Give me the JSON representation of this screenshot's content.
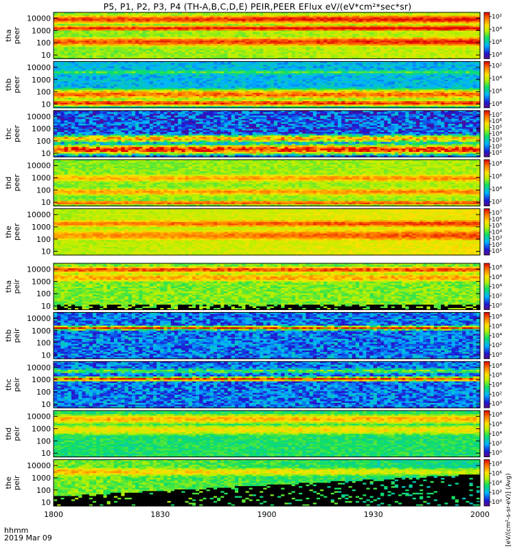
{
  "title": "P5, P1, P2, P3, P4 (TH-A,B,C,D,E) PEIR,PEER EFlux eV/(eV*cm²*sec*sr)",
  "footer": {
    "hhmm": "hhmm",
    "date": "2019 Mar 09"
  },
  "colorbar_label": "[eV/(cm²-s-sr-eV)] (Avg)",
  "colors": {
    "background": "#ffffff",
    "fill_below": "#000000"
  },
  "chart_data": {
    "type": "heatmap",
    "xlabel": "",
    "xticks": [
      "1800",
      "1830",
      "1900",
      "1930",
      "2000"
    ],
    "xlim": [
      "18:00",
      "20:00"
    ],
    "ylim": [
      5,
      30000
    ],
    "yscale": "log",
    "yticks": [
      "10",
      "100",
      "1000",
      "10000"
    ],
    "colorscale": "rainbow (purple-blue-cyan-green-yellow-orange-red)",
    "panels": [
      {
        "probe": "tha",
        "species": "peer",
        "colorbar_ticks": [
          "10²",
          "10⁴",
          "10⁶",
          "10⁸"
        ],
        "cmin_exp": 1,
        "cmax_exp": 9,
        "bands": [
          {
            "e": 8000,
            "w": 0.55,
            "v": 0.92
          },
          {
            "e": 1500,
            "w": 0.35,
            "v": 0.95
          },
          {
            "e": 120,
            "w": 0.6,
            "v": 0.9
          },
          {
            "e": 25,
            "w": 0.3,
            "v": 0.55
          }
        ],
        "base": 0.55,
        "noise": 0.06,
        "drift": 0.08
      },
      {
        "probe": "thb",
        "species": "peer",
        "colorbar_ticks": [
          "10²",
          "10⁴",
          "10⁶",
          "10⁸"
        ],
        "cmin_exp": 1,
        "cmax_exp": 9,
        "bands": [
          {
            "e": 4000,
            "w": 0.25,
            "v": 0.5
          },
          {
            "e": 60,
            "w": 0.55,
            "v": 0.88
          },
          {
            "e": 12,
            "w": 0.35,
            "v": 0.95
          }
        ],
        "base": 0.3,
        "noise": 0.08,
        "drift": 0.0
      },
      {
        "probe": "thc",
        "species": "peer",
        "colorbar_ticks": [
          "10⁷",
          "10⁶",
          "10⁵",
          "10⁴",
          "10³",
          "10²",
          "10¹"
        ],
        "cmin_exp": 1,
        "cmax_exp": 7,
        "bands": [
          {
            "e": 150,
            "w": 0.35,
            "v": 0.78
          },
          {
            "e": 20,
            "w": 0.45,
            "v": 0.97
          }
        ],
        "base": 0.18,
        "noise": 0.16,
        "drift": 0.0
      },
      {
        "probe": "thd",
        "species": "peer",
        "colorbar_ticks": [
          "10⁸",
          "10⁶",
          "10⁴",
          "10²"
        ],
        "cmin_exp": 1,
        "cmax_exp": 9,
        "bands": [
          {
            "e": 900,
            "w": 0.55,
            "v": 0.78
          },
          {
            "e": 70,
            "w": 0.5,
            "v": 0.8
          },
          {
            "e": 9,
            "w": 0.25,
            "v": 0.9
          }
        ],
        "base": 0.55,
        "noise": 0.06,
        "drift": 0.05
      },
      {
        "probe": "the",
        "species": "peer",
        "colorbar_ticks": [
          "10⁷",
          "10⁶",
          "10⁵",
          "10⁴",
          "10³",
          "10²",
          "10¹"
        ],
        "cmin_exp": 1,
        "cmax_exp": 7,
        "bands": [
          {
            "e": 1800,
            "w": 0.5,
            "v": 0.85
          },
          {
            "e": 200,
            "w": 0.8,
            "v": 0.82
          }
        ],
        "base": 0.6,
        "noise": 0.05,
        "drift": 0.1
      },
      {
        "probe": "tha",
        "species": "peir",
        "colorbar_ticks": [
          "10⁸",
          "10⁶",
          "10⁴",
          "10²",
          "10⁰"
        ],
        "cmin_exp": 0,
        "cmax_exp": 9,
        "bands": [
          {
            "e": 9000,
            "w": 0.4,
            "v": 0.92
          },
          {
            "e": 2000,
            "w": 0.6,
            "v": 0.8
          }
        ],
        "base": 0.55,
        "noise": 0.08,
        "drift": 0.0,
        "floor": 12
      },
      {
        "probe": "thb",
        "species": "peir",
        "colorbar_ticks": [
          "10⁸",
          "10⁶",
          "10⁴",
          "10²",
          "10⁰"
        ],
        "cmin_exp": 0,
        "cmax_exp": 9,
        "bands": [
          {
            "e": 1600,
            "w": 0.18,
            "v": 0.95
          }
        ],
        "base": 0.22,
        "noise": 0.14,
        "drift": 0.0
      },
      {
        "probe": "thc",
        "species": "peir",
        "colorbar_ticks": [
          "10⁸",
          "10⁶",
          "10⁴",
          "10²",
          "10⁰"
        ],
        "cmin_exp": 0,
        "cmax_exp": 9,
        "bands": [
          {
            "e": 1100,
            "w": 0.2,
            "v": 0.95
          },
          {
            "e": 5000,
            "w": 0.25,
            "v": 0.5
          }
        ],
        "base": 0.22,
        "noise": 0.14,
        "drift": 0.0
      },
      {
        "probe": "thd",
        "species": "peir",
        "colorbar_ticks": [
          "10⁸",
          "10⁶",
          "10⁴",
          "10²",
          "10⁰"
        ],
        "cmin_exp": 0,
        "cmax_exp": 9,
        "bands": [
          {
            "e": 6000,
            "w": 0.6,
            "v": 0.78
          },
          {
            "e": 800,
            "w": 0.7,
            "v": 0.7
          }
        ],
        "base": 0.45,
        "noise": 0.07,
        "drift": 0.0
      },
      {
        "probe": "the",
        "species": "peir",
        "colorbar_ticks": [
          "10⁸",
          "10⁶",
          "10⁴",
          "10²",
          "10⁰"
        ],
        "cmin_exp": 0,
        "cmax_exp": 9,
        "bands": [
          {
            "e": 3000,
            "w": 0.6,
            "v": 0.78
          }
        ],
        "base": 0.55,
        "noise": 0.08,
        "drift": -0.15,
        "floor_rise": [
          30,
          2000
        ]
      }
    ]
  }
}
